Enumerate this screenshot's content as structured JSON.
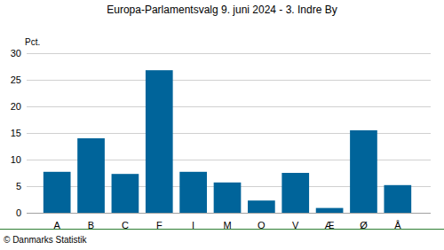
{
  "chart_data": {
    "type": "bar",
    "title": "Europa-Parlamentsvalg 9. juni 2024 - 3. Indre By",
    "y_label": "Pct.",
    "footer": "© Danmarks Statistik",
    "categories": [
      "A",
      "B",
      "C",
      "F",
      "I",
      "M",
      "O",
      "V",
      "Æ",
      "Ø",
      "Å"
    ],
    "values": [
      7.7,
      14.0,
      7.3,
      26.8,
      7.7,
      5.7,
      2.3,
      7.5,
      0.9,
      15.5,
      5.2
    ],
    "color": "#00649a",
    "ylim": [
      0,
      30
    ],
    "yticks": [
      0,
      5,
      10,
      15,
      20,
      25,
      30
    ],
    "grid": true
  }
}
